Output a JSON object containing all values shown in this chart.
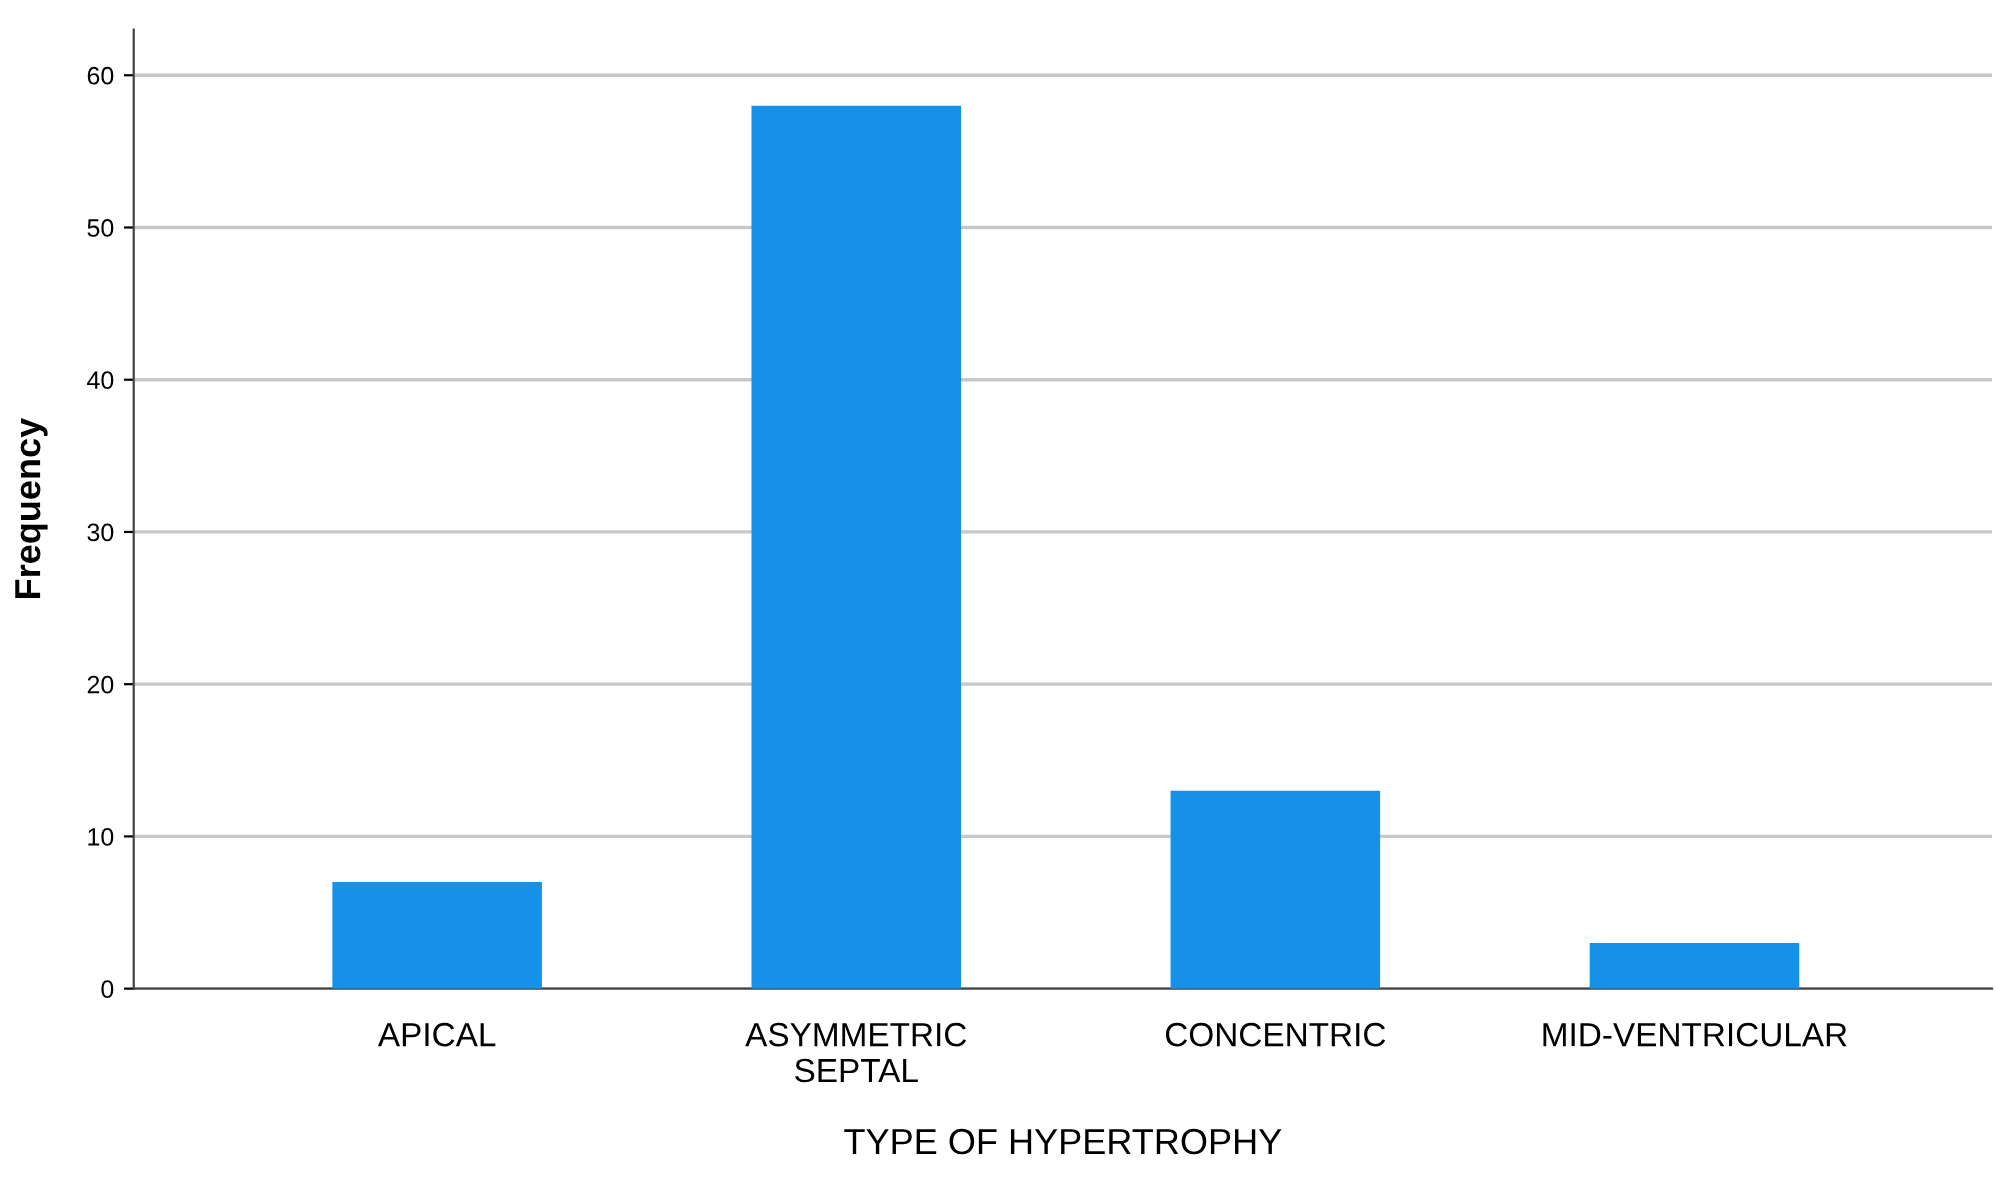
{
  "chart_data": {
    "type": "bar",
    "xlabel": "TYPE OF HYPERTROPHY",
    "ylabel": "Frequency",
    "categories": [
      "APICAL",
      "ASYMMETRIC\nSEPTAL",
      "CONCENTRIC",
      "MID-VENTRICULAR"
    ],
    "values": [
      7,
      58,
      13,
      3
    ],
    "color": "#1591ea",
    "ylim": [
      0,
      63
    ],
    "yticks": [
      0,
      10,
      20,
      30,
      40,
      50,
      60
    ],
    "grid": "y",
    "legend": false
  }
}
